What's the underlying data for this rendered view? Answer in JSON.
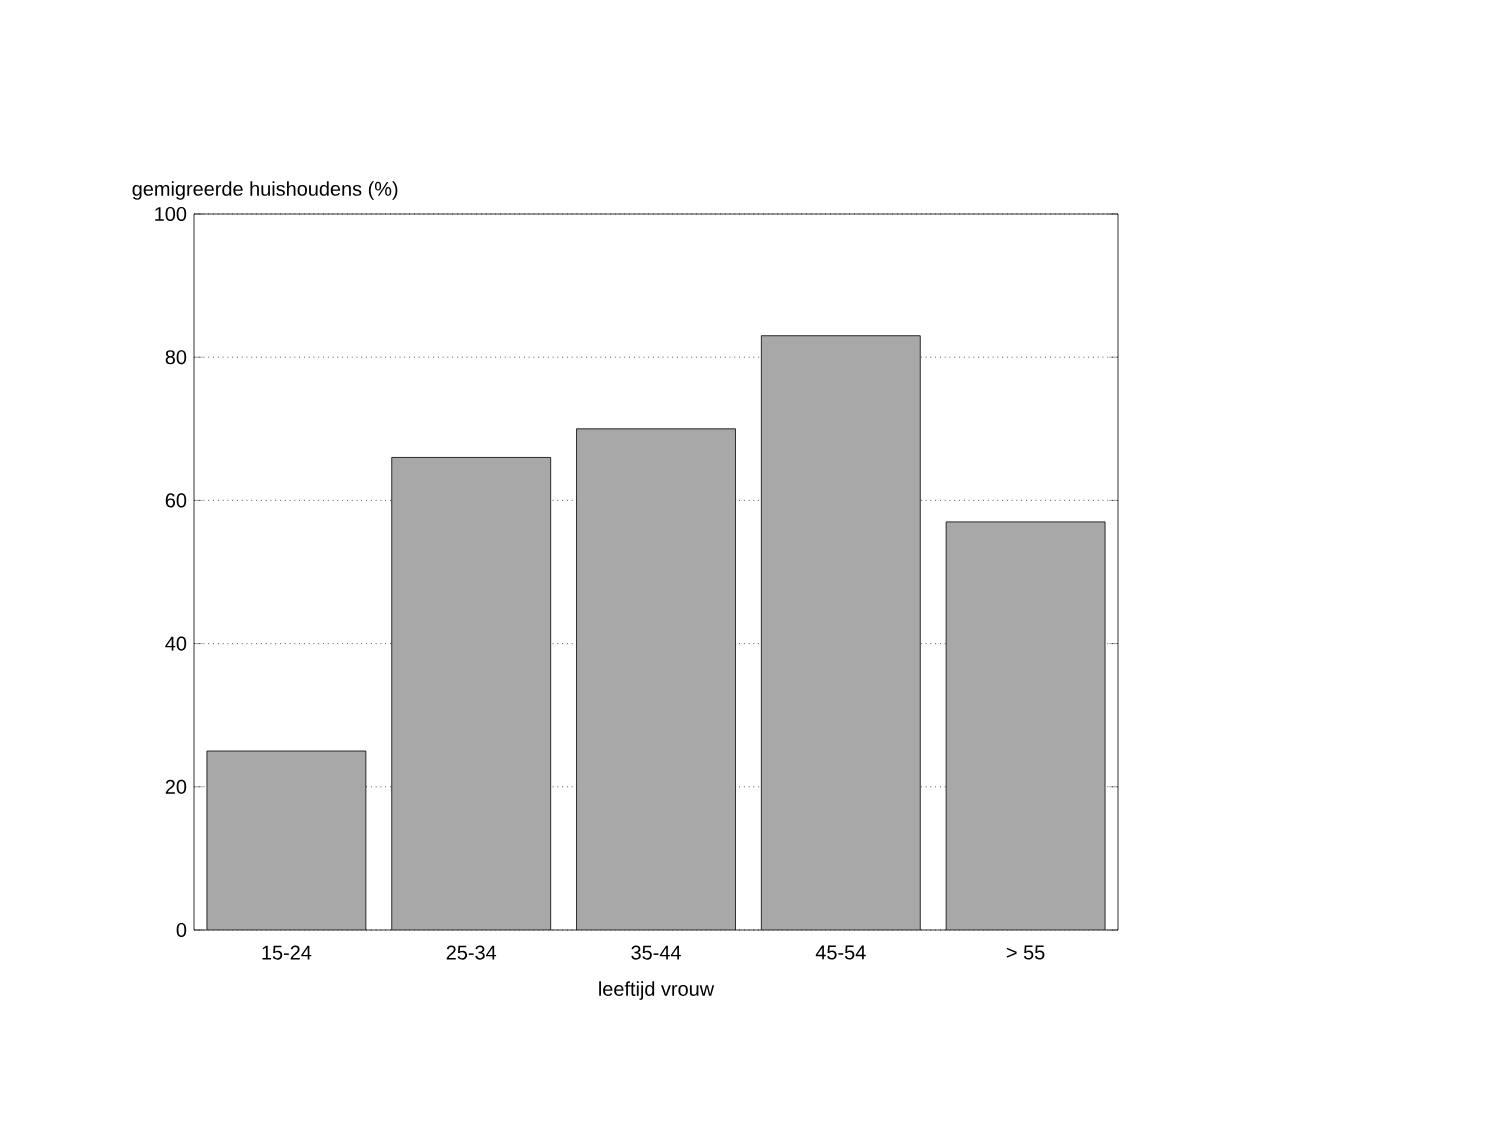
{
  "chart_data": {
    "type": "bar",
    "ylabel": "gemigreerde huishoudens (%)",
    "xlabel": "leeftijd vrouw",
    "categories": [
      "15-24",
      "25-34",
      "35-44",
      "45-54",
      "> 55"
    ],
    "values": [
      25,
      66,
      70,
      83,
      57
    ],
    "color": "#a8a8a8",
    "ylim": [
      0,
      100
    ],
    "yticks": [
      0,
      20,
      40,
      60,
      80,
      100
    ],
    "grid": "y",
    "line_style": "dotted"
  }
}
